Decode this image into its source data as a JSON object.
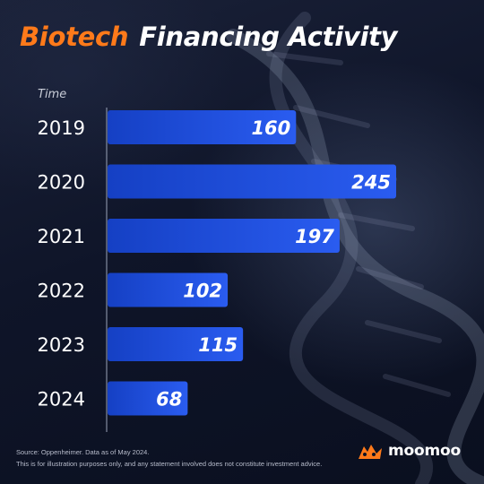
{
  "header": {
    "title_accent": "Biotech",
    "title_rest": "Financing Activity"
  },
  "chart_data": {
    "type": "bar",
    "orientation": "horizontal",
    "axis_label": "Time",
    "categories": [
      "2019",
      "2020",
      "2021",
      "2022",
      "2023",
      "2024"
    ],
    "values": [
      160,
      245,
      197,
      102,
      115,
      68
    ],
    "xlim": [
      0,
      245
    ],
    "grid": false,
    "bar_color": "#1f4fd6",
    "label_color": "#ffffff"
  },
  "footer": {
    "source": "Source: Oppenheimer. Data as of May 2024.",
    "disclaimer": "This is for illustration purposes only, and any statement involved does not constitute investment advice."
  },
  "brand": {
    "name": "moomoo",
    "icon": "moomoo-logo-icon",
    "accent_color": "#ff7a1a"
  }
}
